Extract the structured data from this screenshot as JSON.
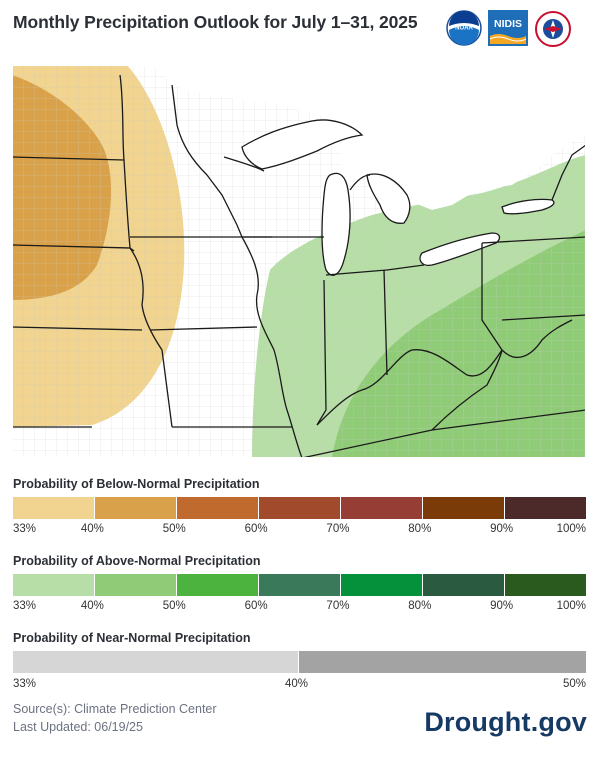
{
  "title": "Monthly Precipitation Outlook for July 1–31, 2025",
  "logos": {
    "noaa": {
      "text": "NOAA",
      "icon": "noaa-logo"
    },
    "nidis": {
      "text": "NIDIS",
      "icon": "nidis-logo"
    },
    "nws": {
      "text": "NATIONAL WEATHER SERVICE",
      "icon": "nws-logo"
    }
  },
  "colors": {
    "below": [
      "#f0d48f",
      "#d9a24a",
      "#c06a2e",
      "#a24a2c",
      "#963d36",
      "#7b3b09",
      "#4d2a2a"
    ],
    "above": [
      "#b6dea6",
      "#90cc78",
      "#4cb33f",
      "#3a7a5b",
      "#05913b",
      "#2a5a40",
      "#2a5a1e"
    ],
    "near": [
      "#d6d6d6",
      "#a3a3a3"
    ],
    "brand": "#163a64"
  },
  "legend": {
    "below": {
      "title": "Probability of Below-Normal Precipitation",
      "ticks": [
        "33%",
        "40%",
        "50%",
        "60%",
        "70%",
        "80%",
        "90%",
        "100%"
      ]
    },
    "above": {
      "title": "Probability of Above-Normal Precipitation",
      "ticks": [
        "33%",
        "40%",
        "50%",
        "60%",
        "70%",
        "80%",
        "90%",
        "100%"
      ]
    },
    "near": {
      "title": "Probability of Near-Normal Precipitation",
      "ticks": [
        "33%",
        "40%",
        "50%"
      ]
    }
  },
  "source": {
    "line1": "Source(s): Climate Prediction Center",
    "line2": "Last Updated: 06/19/25"
  },
  "brand": "Drought.gov"
}
